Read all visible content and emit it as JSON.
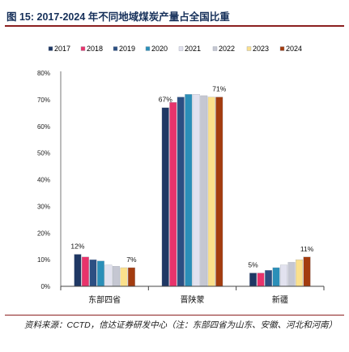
{
  "figure": {
    "title": "图 15:  2017-2024 年不同地域煤炭产量占全国比重",
    "source": "资料来源：CCTD，信达证券研发中心（注：东部四省为山东、安徽、河北和河南）"
  },
  "chart_data": {
    "type": "bar",
    "categories": [
      "东部四省",
      "晋陕蒙",
      "新疆"
    ],
    "series": [
      {
        "name": "2017",
        "color": "#1f3864",
        "values": [
          12,
          67,
          5
        ]
      },
      {
        "name": "2018",
        "color": "#e8336b",
        "values": [
          11,
          69,
          5
        ]
      },
      {
        "name": "2019",
        "color": "#2c4f82",
        "values": [
          10,
          71,
          6
        ]
      },
      {
        "name": "2020",
        "color": "#2b8fb8",
        "values": [
          9.5,
          72,
          7
        ]
      },
      {
        "name": "2021",
        "color": "#e2e2ef",
        "values": [
          8,
          72,
          8
        ]
      },
      {
        "name": "2022",
        "color": "#c5c7d2",
        "values": [
          7.5,
          71.5,
          9
        ]
      },
      {
        "name": "2023",
        "color": "#fbe08c",
        "values": [
          7,
          71,
          10
        ]
      },
      {
        "name": "2024",
        "color": "#a33c0f",
        "values": [
          7,
          71,
          11
        ]
      }
    ],
    "data_labels": [
      {
        "category": 0,
        "series": 0,
        "text": "12%"
      },
      {
        "category": 0,
        "series": 7,
        "text": "7%"
      },
      {
        "category": 1,
        "series": 0,
        "text": "67%"
      },
      {
        "category": 1,
        "series": 7,
        "text": "71%"
      },
      {
        "category": 2,
        "series": 0,
        "text": "5%"
      },
      {
        "category": 2,
        "series": 7,
        "text": "11%"
      }
    ],
    "ylim": [
      0,
      80
    ],
    "yticks": [
      "0%",
      "10%",
      "20%",
      "30%",
      "40%",
      "50%",
      "60%",
      "70%",
      "80%"
    ],
    "grid": false,
    "legend_position": "top"
  }
}
